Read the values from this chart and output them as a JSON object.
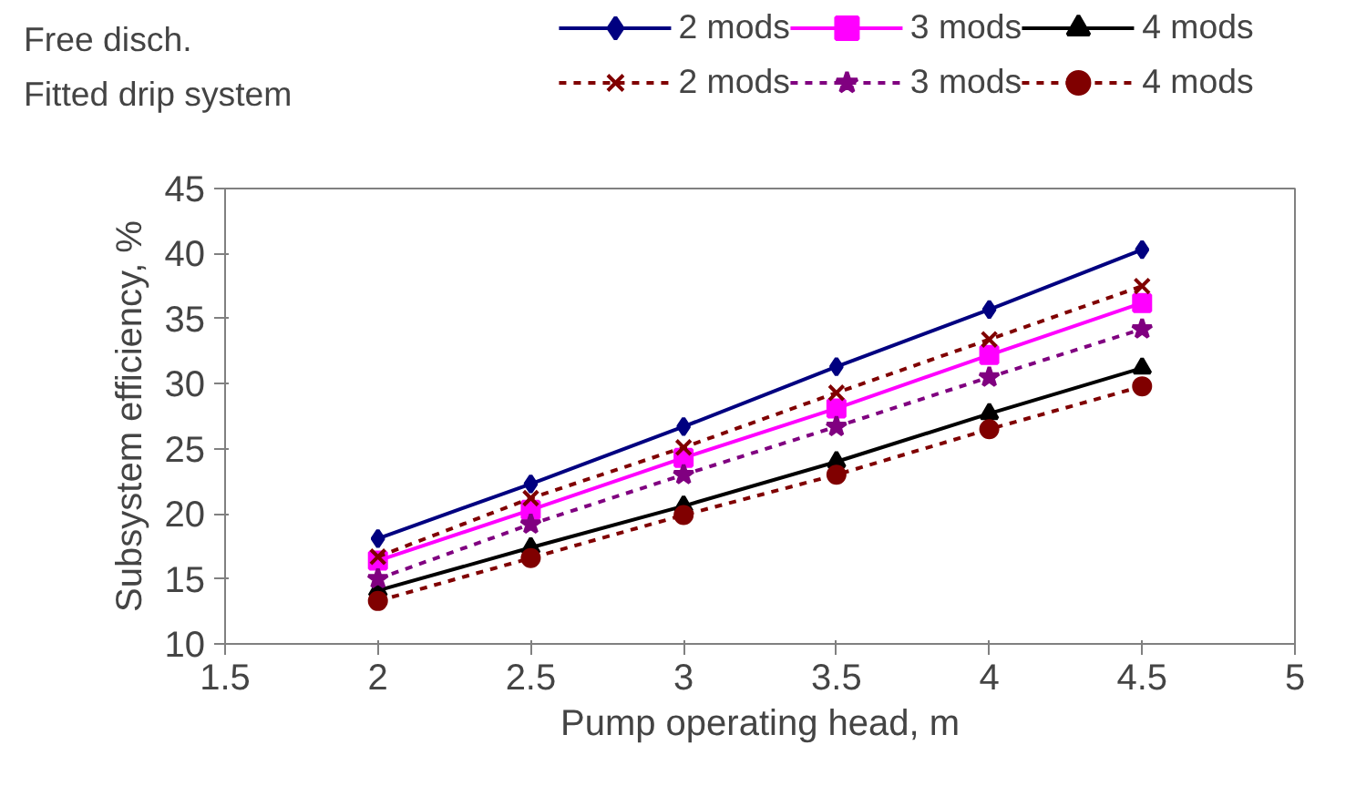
{
  "chart_data": {
    "type": "line",
    "xlabel": "Pump operating head, m",
    "ylabel": "Subsystem efficiency, %",
    "x": [
      2,
      2.5,
      3,
      3.5,
      4,
      4.5
    ],
    "xlim": [
      1.5,
      5
    ],
    "xticks": [
      1.5,
      2,
      2.5,
      3,
      3.5,
      4,
      4.5,
      5
    ],
    "ylim": [
      10,
      45
    ],
    "yticks": [
      10,
      15,
      20,
      25,
      30,
      35,
      40,
      45
    ],
    "grid": false,
    "legend": "top right",
    "annotations": [
      "Free disch.",
      "Fitted drip system"
    ],
    "series": [
      {
        "name": "2 mods",
        "color": "#000080",
        "marker": "diamond",
        "line_style": "solid",
        "values": [
          18.1,
          22.3,
          26.7,
          31.3,
          35.7,
          40.3
        ]
      },
      {
        "name": "3 mods",
        "color": "#ff00ff",
        "marker": "square",
        "line_style": "solid",
        "values": [
          16.4,
          20.3,
          24.3,
          28.1,
          32.2,
          36.2
        ]
      },
      {
        "name": "4 mods",
        "color": "#000000",
        "marker": "triangle",
        "line_style": "solid",
        "values": [
          14.1,
          17.4,
          20.6,
          24.0,
          27.7,
          31.2
        ]
      },
      {
        "name": "2 mods",
        "color": "#800000",
        "marker": "cross",
        "line_style": "dashed",
        "values": [
          16.7,
          21.2,
          25.1,
          29.3,
          33.4,
          37.5
        ]
      },
      {
        "name": "3 mods",
        "color": "#800080",
        "marker": "star",
        "line_style": "dashed",
        "values": [
          15.0,
          19.2,
          23.0,
          26.7,
          30.5,
          34.2
        ]
      },
      {
        "name": "4 mods",
        "color": "#800000",
        "marker": "circle",
        "line_style": "dashed",
        "values": [
          13.3,
          16.6,
          19.9,
          23.0,
          26.5,
          29.8
        ]
      }
    ]
  }
}
